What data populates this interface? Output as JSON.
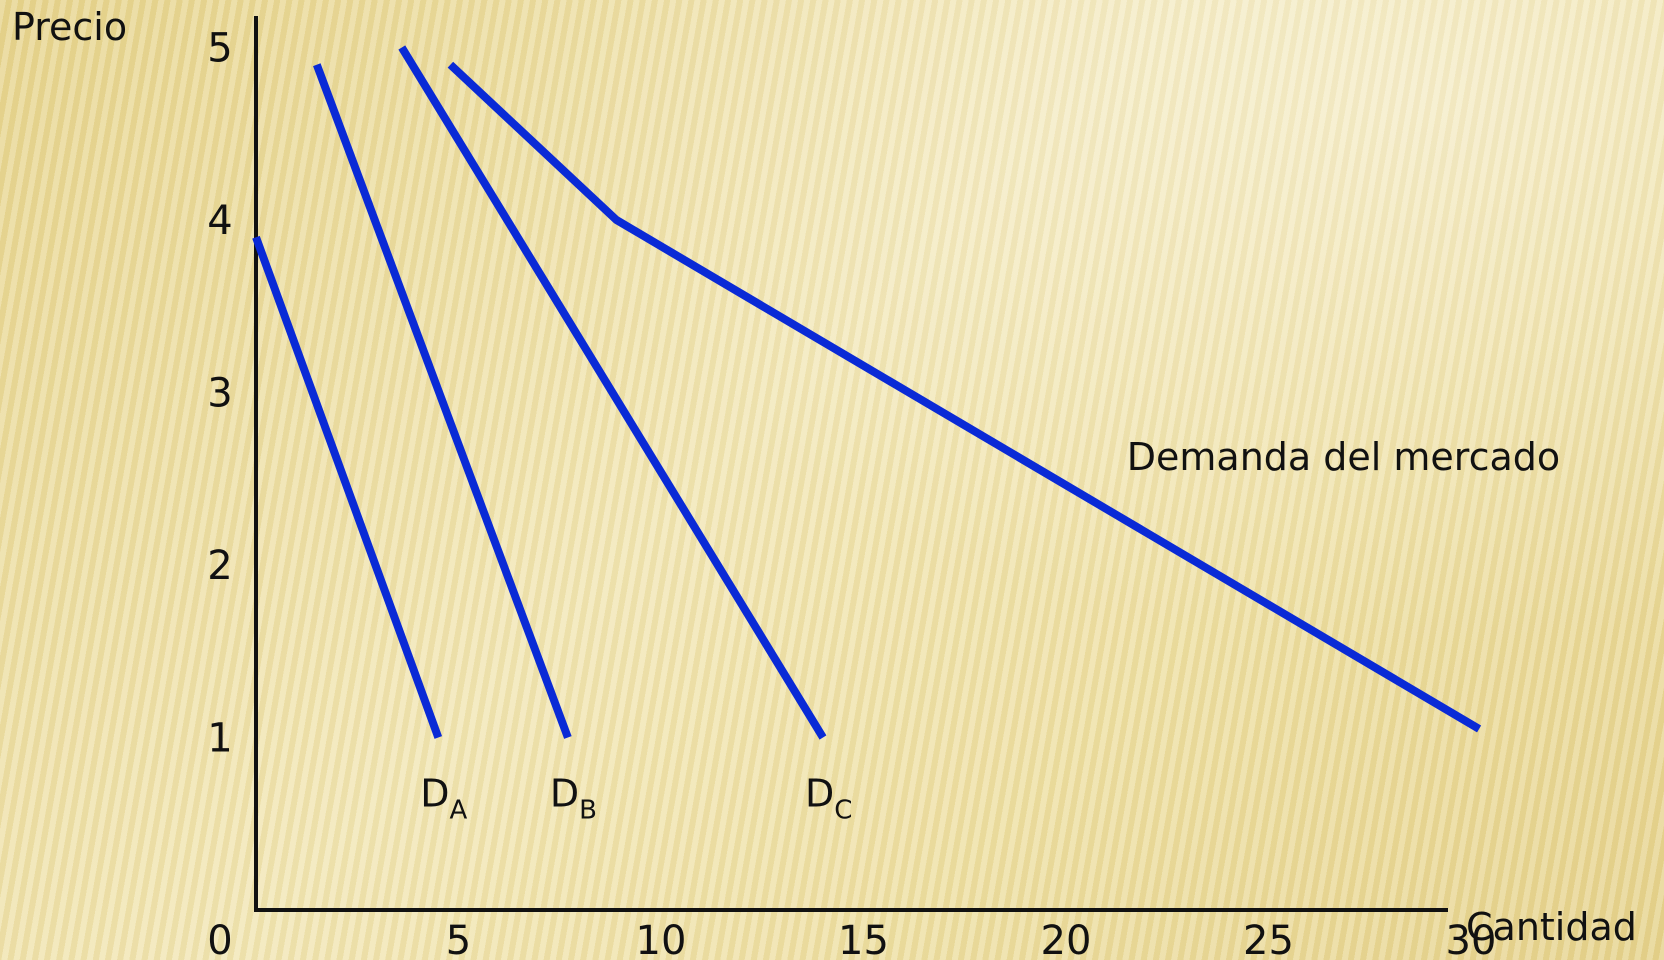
{
  "chart_data": {
    "type": "line",
    "xlabel": "Cantidad",
    "ylabel": "Precio",
    "xlim": [
      0,
      32
    ],
    "ylim": [
      0,
      5.3
    ],
    "x_ticks": [
      "0",
      "5",
      "10",
      "15",
      "20",
      "25",
      "30"
    ],
    "y_ticks": [
      "1",
      "2",
      "3",
      "4",
      "5"
    ],
    "line_color": "#0a2ad6",
    "series": [
      {
        "name": "D",
        "subscript": "A",
        "x": [
          0,
          4.5
        ],
        "y": [
          3.9,
          1
        ],
        "label_at": [
          4.5,
          0.6
        ]
      },
      {
        "name": "D",
        "subscript": "B",
        "x": [
          1.5,
          7.7
        ],
        "y": [
          4.9,
          1
        ],
        "label_at": [
          7.7,
          0.6
        ]
      },
      {
        "name": "D",
        "subscript": "C",
        "x": [
          3.6,
          14
        ],
        "y": [
          5,
          1
        ],
        "label_at": [
          14,
          0.6
        ]
      },
      {
        "name": "Demanda del mercado",
        "x": [
          4.8,
          8.9,
          30.2
        ],
        "y": [
          4.9,
          4.0,
          1.05
        ],
        "label_at": [
          21.5,
          2.55
        ]
      }
    ]
  }
}
